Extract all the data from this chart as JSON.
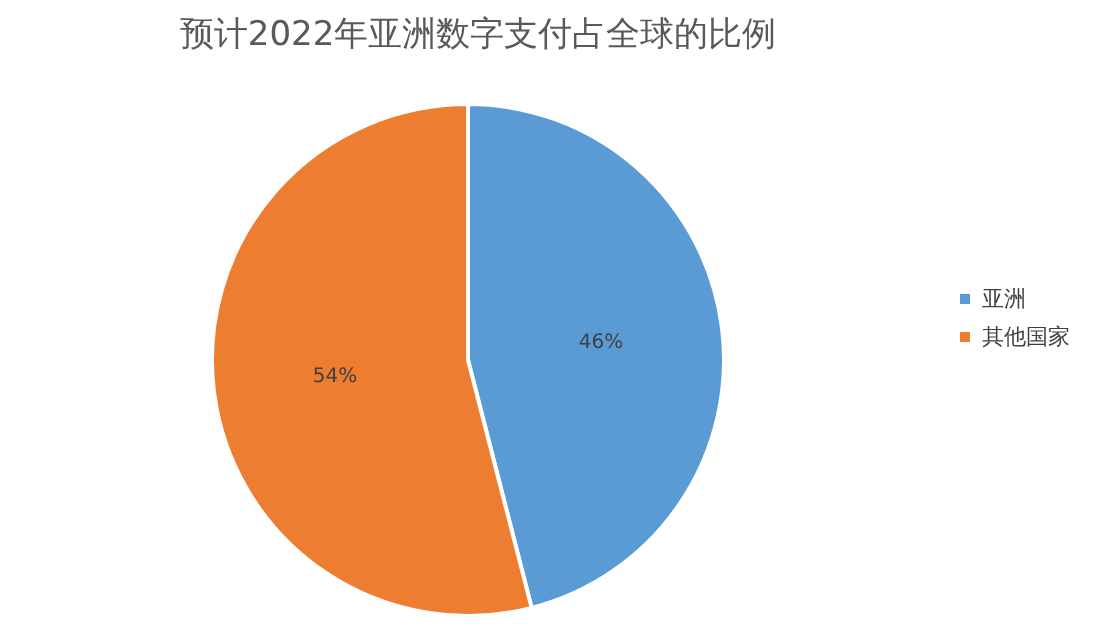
{
  "chart_data": {
    "type": "pie",
    "title": "预计2022年亚洲数字支付占全球的比例",
    "categories": [
      "亚洲",
      "其他国家"
    ],
    "values": [
      46,
      54
    ],
    "colors": [
      "#5b9bd5",
      "#ed7d31"
    ],
    "value_labels": [
      "46%",
      "54%"
    ],
    "legend": "right"
  }
}
